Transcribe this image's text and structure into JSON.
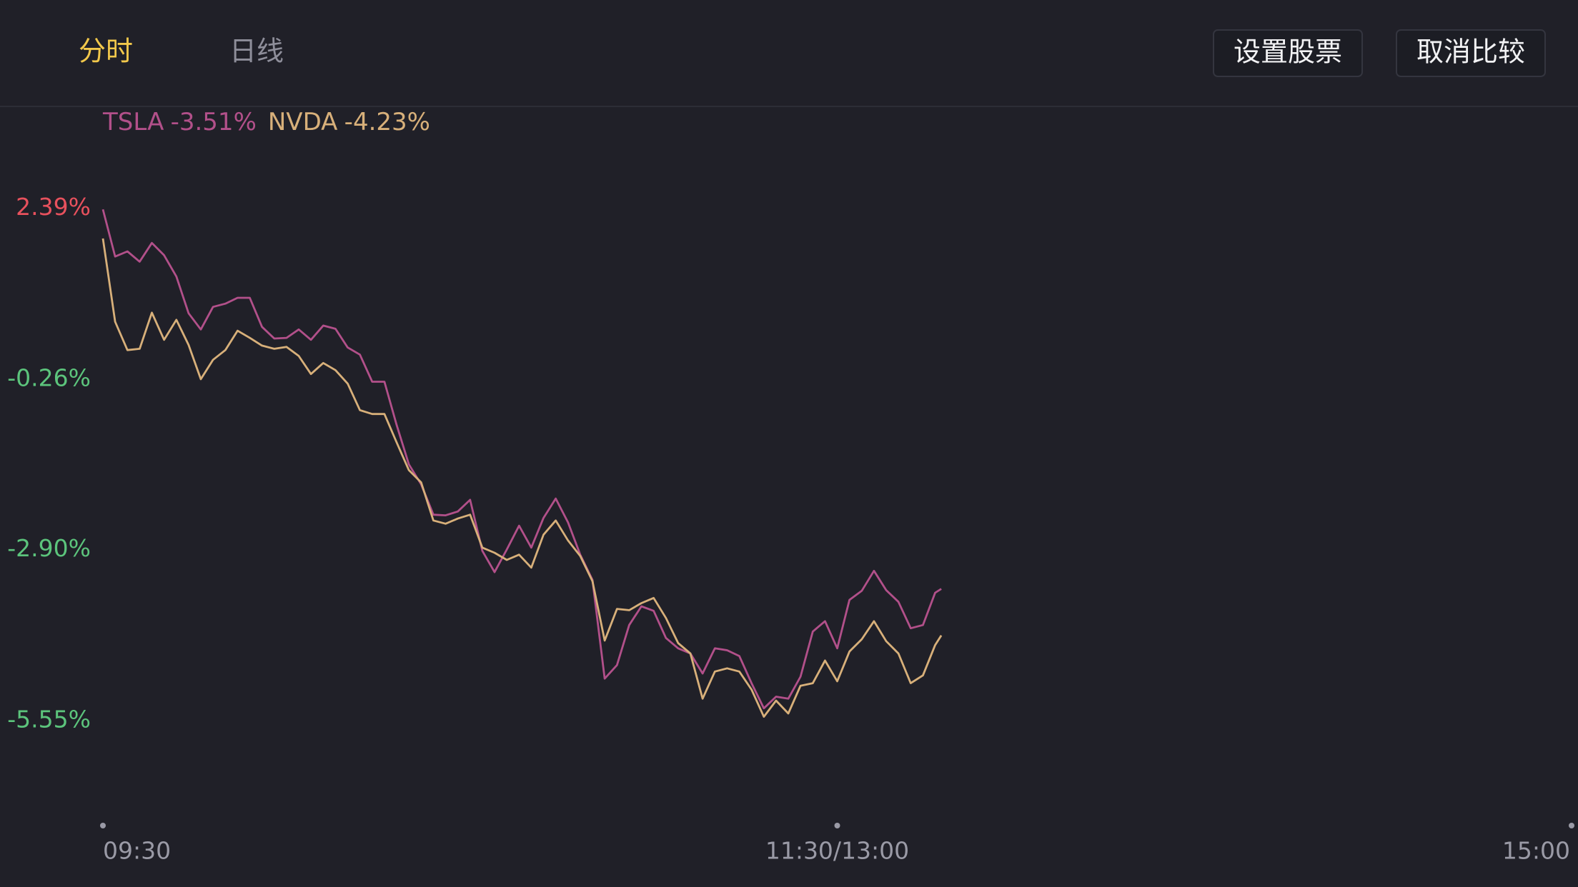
{
  "header": {
    "tabs": [
      "分时",
      "日线"
    ],
    "buttons": [
      "设置股票",
      "取消比较"
    ]
  },
  "chart_data": {
    "type": "line",
    "x": [
      0,
      2,
      4,
      6,
      8,
      10,
      12,
      14,
      16,
      18,
      20,
      22,
      24,
      26,
      28,
      30,
      32,
      34,
      36,
      38,
      40,
      42,
      44,
      46,
      48,
      50,
      52,
      54,
      56,
      58,
      60,
      62,
      64,
      66,
      68,
      70,
      72,
      74,
      76,
      78,
      80,
      82,
      84,
      86,
      88,
      90,
      92,
      94,
      96,
      98,
      100,
      102,
      104,
      106,
      108,
      110,
      112,
      114,
      116,
      118,
      120,
      122,
      124,
      126,
      128,
      130,
      132,
      134,
      136,
      137
    ],
    "series": [
      {
        "name": "TSLA",
        "change": "-3.51%",
        "color": "#b2508a",
        "values": [
          2.37,
          1.64,
          1.72,
          1.56,
          1.85,
          1.66,
          1.33,
          0.76,
          0.51,
          0.86,
          0.91,
          1.0,
          1.0,
          0.55,
          0.37,
          0.38,
          0.51,
          0.35,
          0.57,
          0.52,
          0.23,
          0.12,
          -0.3,
          -0.3,
          -0.97,
          -1.58,
          -1.89,
          -2.36,
          -2.37,
          -2.31,
          -2.13,
          -2.92,
          -3.25,
          -2.9,
          -2.53,
          -2.87,
          -2.41,
          -2.11,
          -2.48,
          -2.98,
          -3.37,
          -4.9,
          -4.69,
          -4.07,
          -3.78,
          -3.85,
          -4.27,
          -4.43,
          -4.51,
          -4.82,
          -4.43,
          -4.46,
          -4.55,
          -4.97,
          -5.36,
          -5.18,
          -5.21,
          -4.87,
          -4.17,
          -4.01,
          -4.43,
          -3.68,
          -3.54,
          -3.23,
          -3.53,
          -3.71,
          -4.12,
          -4.07,
          -3.57,
          -3.51
        ]
      },
      {
        "name": "NVDA",
        "change": "-4.23%",
        "color": "#d8b07a",
        "values": [
          1.92,
          0.63,
          0.19,
          0.21,
          0.77,
          0.35,
          0.66,
          0.27,
          -0.26,
          0.04,
          0.19,
          0.49,
          0.38,
          0.26,
          0.21,
          0.24,
          0.1,
          -0.18,
          -0.01,
          -0.12,
          -0.33,
          -0.74,
          -0.8,
          -0.8,
          -1.24,
          -1.67,
          -1.86,
          -2.45,
          -2.5,
          -2.42,
          -2.36,
          -2.87,
          -2.95,
          -3.06,
          -2.98,
          -3.18,
          -2.67,
          -2.45,
          -2.76,
          -3.0,
          -3.39,
          -4.31,
          -3.82,
          -3.84,
          -3.73,
          -3.65,
          -3.96,
          -4.35,
          -4.51,
          -5.21,
          -4.79,
          -4.74,
          -4.79,
          -5.07,
          -5.49,
          -5.24,
          -5.44,
          -5.01,
          -4.97,
          -4.62,
          -4.94,
          -4.48,
          -4.29,
          -4.01,
          -4.32,
          -4.51,
          -4.97,
          -4.85,
          -4.38,
          -4.23
        ]
      }
    ],
    "xlim": [
      0,
      240
    ],
    "xticks": [
      {
        "value": 0,
        "label": "09:30"
      },
      {
        "value": 120,
        "label": "11:30/13:00"
      },
      {
        "value": 240,
        "label": "15:00"
      }
    ],
    "ylim": [
      -6.69,
      3.28
    ],
    "yticks": [
      {
        "value": 2.39,
        "label": "2.39%"
      },
      {
        "value": -0.26,
        "label": "-0.26%"
      },
      {
        "value": -2.9,
        "label": "-2.90%"
      },
      {
        "value": -5.55,
        "label": "-5.55%"
      }
    ],
    "up_color": "#e8515d",
    "down_color": "#5cc47c"
  }
}
